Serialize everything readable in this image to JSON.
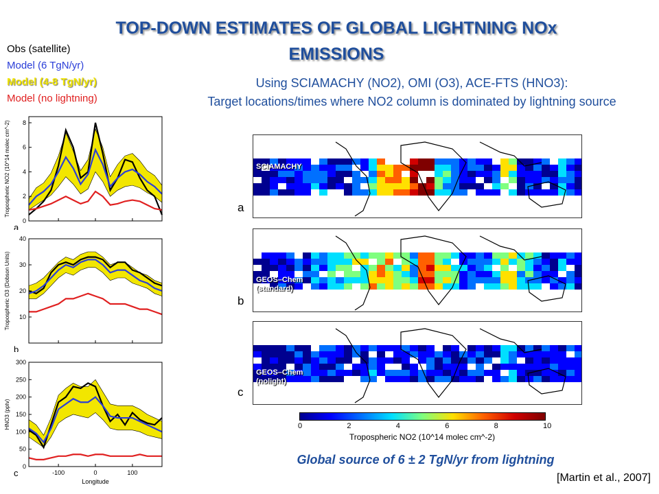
{
  "slide": {
    "title": "TOP-DOWN ESTIMATES OF GLOBAL LIGHTNING NOx EMISSIONS",
    "subtitle_line1": "Using SCIAMACHY (NO2), OMI (O3), ACE-FTS (HNO3):",
    "subtitle_line2": "Target locations/times where NO2 column is dominated by lightning source",
    "conclusion": "Global source of 6 ± 2 TgN/yr from lightning",
    "citation": "[Martin et al., 2007]"
  },
  "legend": {
    "items": [
      {
        "label": "Obs (satellite)",
        "color": "#000000"
      },
      {
        "label": "Model (6 TgN/yr)",
        "color": "#2a3ed8"
      },
      {
        "label": "Model (4-8 TgN/yr)",
        "color": "#f2e600"
      },
      {
        "label": "Model (no lightning)",
        "color": "#e02020"
      }
    ]
  },
  "maps": {
    "panels": [
      {
        "letter": "a",
        "label": "SCIAMACHY"
      },
      {
        "letter": "b",
        "label": "GEOS–Chem (standard)"
      },
      {
        "letter": "c",
        "label": "GEOS–Chem (nolight)"
      }
    ],
    "colorbar": {
      "ticks": [
        "0",
        "2",
        "4",
        "6",
        "8",
        "10"
      ],
      "label": "Tropospheric NO2 (10^14 molec cm^-2)",
      "colors": [
        "#00008f",
        "#0000ff",
        "#0070ff",
        "#00dfff",
        "#7fff7f",
        "#ffe000",
        "#ff6000",
        "#d00000",
        "#7f0000"
      ]
    }
  },
  "chart_data": [
    {
      "type": "line",
      "ylabel": "Tropospheric NO2 (10^14 molec cm^-2)",
      "yticks": [
        "0",
        "2",
        "4",
        "6",
        "8"
      ],
      "ylim": [
        0,
        8.5
      ],
      "xlim": [
        -180,
        180
      ],
      "x": [
        -180,
        -160,
        -140,
        -120,
        -100,
        -80,
        -60,
        -40,
        -20,
        0,
        20,
        40,
        60,
        80,
        100,
        120,
        140,
        160,
        180
      ],
      "series": [
        {
          "name": "Obs (satellite)",
          "color": "#000000",
          "values": [
            0.5,
            1.0,
            1.6,
            2.5,
            4.5,
            7.4,
            6.0,
            3.5,
            4.0,
            8.0,
            5.5,
            2.5,
            3.5,
            5.0,
            4.8,
            3.5,
            2.5,
            2.0,
            0.5
          ]
        },
        {
          "name": "Model (6 TgN/yr)",
          "color": "#2a3ed8",
          "values": [
            1.3,
            2.0,
            2.4,
            3.0,
            4.0,
            5.2,
            4.3,
            3.0,
            3.8,
            5.8,
            4.6,
            2.8,
            3.5,
            4.0,
            4.2,
            3.8,
            3.2,
            2.8,
            2.2
          ]
        },
        {
          "name": "Model (no lightning)",
          "color": "#e02020",
          "values": [
            0.9,
            1.0,
            1.2,
            1.4,
            1.7,
            2.0,
            1.7,
            1.4,
            1.6,
            2.4,
            2.0,
            1.3,
            1.4,
            1.6,
            1.7,
            1.6,
            1.3,
            1.0,
            0.9
          ]
        }
      ],
      "band": {
        "name": "Model (4-8 TgN/yr)",
        "color": "#f2e600",
        "low": [
          0.9,
          1.3,
          1.7,
          2.1,
          2.8,
          3.6,
          3.0,
          2.2,
          2.6,
          4.0,
          3.2,
          2.0,
          2.5,
          2.8,
          2.9,
          2.7,
          2.3,
          2.0,
          1.5
        ],
        "high": [
          1.8,
          2.7,
          3.1,
          3.9,
          5.3,
          7.2,
          5.7,
          4.1,
          5.0,
          7.5,
          6.0,
          3.6,
          4.6,
          5.3,
          5.5,
          4.9,
          4.1,
          3.7,
          2.9
        ]
      },
      "panel_letter": "a"
    },
    {
      "type": "line",
      "ylabel": "Tropospheric O3 (Dobson Units)",
      "yticks": [
        "10",
        "20",
        "30",
        "40"
      ],
      "ylim": [
        0,
        40
      ],
      "xlim": [
        -180,
        180
      ],
      "x": [
        -180,
        -160,
        -140,
        -120,
        -100,
        -80,
        -60,
        -40,
        -20,
        0,
        20,
        40,
        60,
        80,
        100,
        120,
        140,
        160,
        180
      ],
      "series": [
        {
          "name": "Obs (satellite)",
          "color": "#000000",
          "values": [
            20,
            19,
            21,
            27,
            30,
            31,
            30,
            32,
            33,
            33,
            32,
            29,
            31,
            31,
            28,
            27,
            25,
            23,
            22
          ]
        },
        {
          "name": "Model (6 TgN/yr)",
          "color": "#2a3ed8",
          "values": [
            19,
            20,
            22,
            25,
            28,
            30,
            29,
            31,
            32,
            32,
            30,
            27,
            28,
            28,
            26,
            24,
            23,
            21,
            20
          ]
        },
        {
          "name": "Model (no lightning)",
          "color": "#e02020",
          "values": [
            12,
            12,
            13,
            14,
            15,
            17,
            17,
            18,
            19,
            18,
            17,
            15,
            15,
            15,
            14,
            13,
            13,
            12,
            11
          ]
        }
      ],
      "band": {
        "name": "Model (4-8 TgN/yr)",
        "color": "#f2e600",
        "low": [
          17,
          17,
          19,
          22,
          25,
          27,
          26,
          28,
          29,
          29,
          27,
          24,
          25,
          25,
          23,
          22,
          21,
          19,
          18
        ],
        "high": [
          22,
          23,
          25,
          28,
          31,
          33,
          32,
          34,
          35,
          35,
          33,
          30,
          31,
          31,
          29,
          27,
          26,
          24,
          23
        ]
      },
      "panel_letter": "b"
    },
    {
      "type": "line",
      "ylabel": "HNO3 (pptv)",
      "xlabel": "Longitude",
      "yticks": [
        "0",
        "50",
        "100",
        "150",
        "200",
        "250",
        "300"
      ],
      "xticks": [
        "-100",
        "0",
        "100"
      ],
      "ylim": [
        0,
        300
      ],
      "xlim": [
        -180,
        180
      ],
      "x": [
        -180,
        -160,
        -140,
        -120,
        -100,
        -80,
        -60,
        -40,
        -20,
        0,
        20,
        40,
        60,
        80,
        100,
        120,
        140,
        160,
        180
      ],
      "series": [
        {
          "name": "Obs (satellite)",
          "color": "#000000",
          "values": [
            105,
            90,
            55,
            120,
            185,
            200,
            230,
            225,
            240,
            230,
            175,
            130,
            150,
            120,
            155,
            135,
            125,
            120,
            140
          ]
        },
        {
          "name": "Model (6 TgN/yr)",
          "color": "#2a3ed8",
          "values": [
            110,
            95,
            70,
            110,
            165,
            180,
            195,
            185,
            185,
            200,
            175,
            145,
            140,
            140,
            140,
            130,
            120,
            110,
            100
          ]
        },
        {
          "name": "Model (no lightning)",
          "color": "#e02020",
          "values": [
            25,
            20,
            20,
            25,
            30,
            30,
            35,
            35,
            30,
            35,
            35,
            30,
            30,
            30,
            30,
            35,
            30,
            30,
            30
          ]
        }
      ],
      "band": {
        "name": "Model (4-8 TgN/yr)",
        "color": "#f2e600",
        "low": [
          85,
          70,
          55,
          85,
          125,
          140,
          150,
          145,
          140,
          155,
          135,
          110,
          105,
          105,
          105,
          100,
          90,
          85,
          80
        ],
        "high": [
          135,
          120,
          90,
          140,
          205,
          225,
          240,
          230,
          230,
          250,
          215,
          180,
          175,
          175,
          175,
          165,
          150,
          140,
          130
        ]
      },
      "panel_letter": "c"
    }
  ]
}
